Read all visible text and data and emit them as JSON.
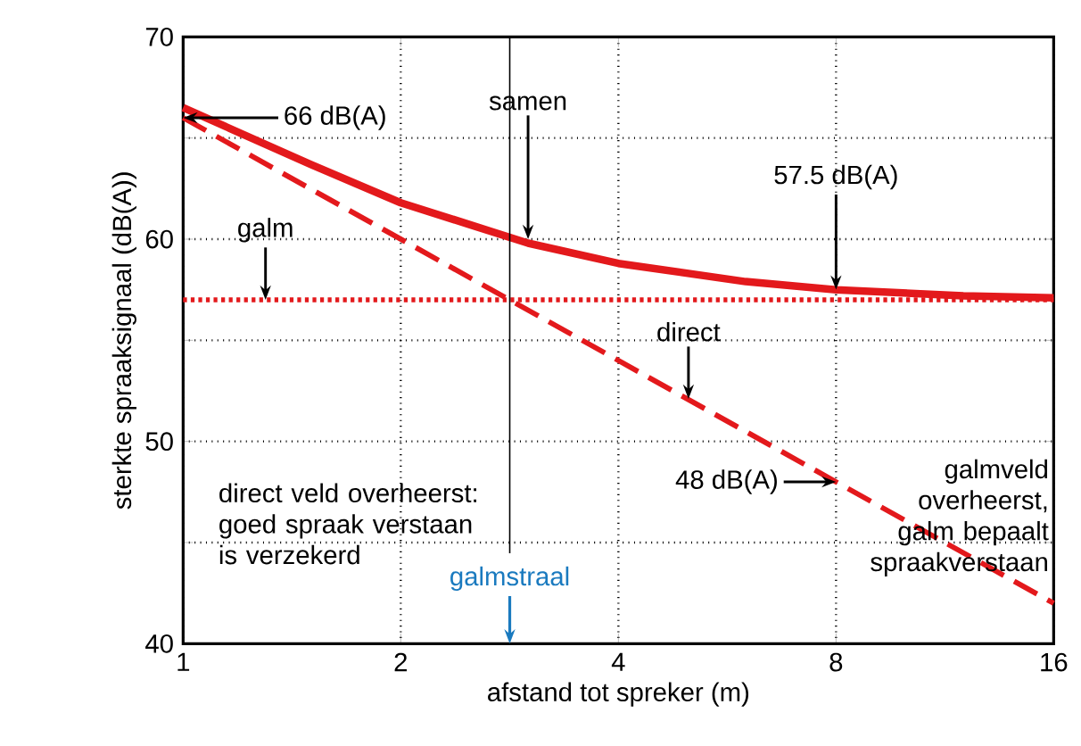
{
  "chart_data": {
    "type": "line",
    "xlabel": "afstand tot spreker (m)",
    "ylabel": "sterkte spraaksignaal (dB(A))",
    "log": "x",
    "xlim": [
      1,
      16
    ],
    "xticks": [
      1,
      2,
      4,
      8,
      16
    ],
    "ylim": [
      40,
      70
    ],
    "yticks": [
      40,
      {
        "value": 45,
        "label": null
      },
      50,
      {
        "value": 55,
        "label": null
      },
      60,
      {
        "value": 65,
        "label": null
      },
      70
    ],
    "grid": true,
    "marker": "none",
    "series": [
      {
        "color": "#e3191c",
        "line_style": "solid",
        "x": [
          1,
          1.5,
          2,
          3,
          4,
          6,
          8,
          12,
          16
        ],
        "values": [
          66.5,
          63.7,
          61.8,
          59.8,
          58.8,
          57.9,
          57.5,
          57.2,
          57.1
        ]
      },
      {
        "color": "#e3191c",
        "line_style": "dashed",
        "x": [
          1,
          16
        ],
        "values": [
          66,
          42
        ]
      },
      {
        "color": "#e3191c",
        "line_style": "dotted",
        "x": [
          1,
          16
        ],
        "values": [
          57,
          57
        ]
      }
    ],
    "ref_lines": [
      {
        "axis": "x",
        "value": 2.83,
        "label": "galmstraal",
        "color": "#000000"
      }
    ],
    "annotations": [
      {
        "text": "66 dB(A)",
        "x": 1,
        "y": 66
      },
      {
        "text": "samen",
        "x": 3,
        "y": 60
      },
      {
        "text": "57.5 dB(A)",
        "x": 8,
        "y": 57.5
      },
      {
        "text": "galm",
        "x": 1.3,
        "y": 57
      },
      {
        "text": "direct",
        "x": 5,
        "y": 52.1
      },
      {
        "text": "48 dB(A)",
        "x": 8,
        "y": 48
      },
      "direct veld overheerst: goed spraak verstaan is verzekerd",
      "galmveld overheerst, galm bepaalt spraakverstaan"
    ]
  }
}
